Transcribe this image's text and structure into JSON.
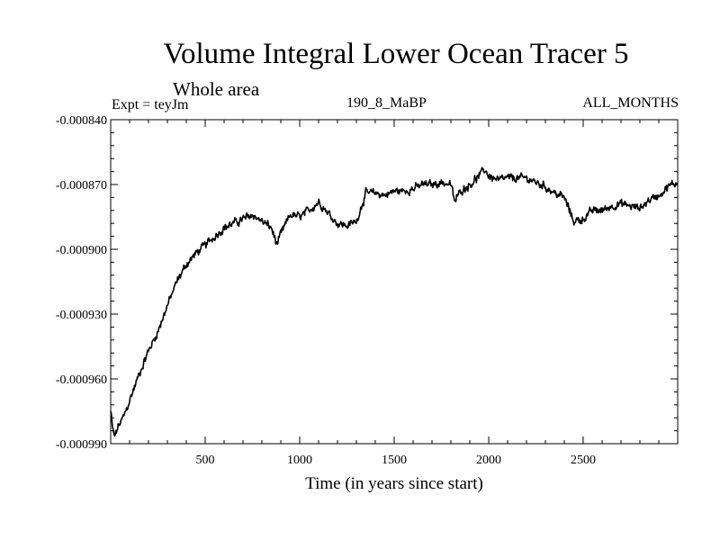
{
  "header": {
    "title": "Volume Integral Lower Ocean Tracer 5",
    "subtitle": "Whole area",
    "expt": "Expt = teyJm",
    "center_label": "190_8_MaBP",
    "right_label": "ALL_MONTHS"
  },
  "chart_data": {
    "type": "line",
    "title": "Volume Integral Lower Ocean Tracer 5",
    "xlabel": "Time (in years since start)",
    "ylabel": "",
    "xlim": [
      0,
      3000
    ],
    "ylim": [
      -0.00099,
      -0.00084
    ],
    "x_ticks": [
      500,
      1000,
      1500,
      2000,
      2500
    ],
    "x_tick_labels": [
      "500",
      "1000",
      "1500",
      "2000",
      "2500"
    ],
    "y_ticks": [
      -0.00084,
      -0.00087,
      -0.0009,
      -0.00093,
      -0.00096,
      -0.00099
    ],
    "y_tick_labels": [
      "-0.000840",
      "-0.000870",
      "-0.000900",
      "-0.000930",
      "-0.000960",
      "-0.000990"
    ],
    "series": [
      {
        "name": "Lower Ocean Tracer 5",
        "x": [
          0,
          10,
          20,
          40,
          60,
          80,
          100,
          150,
          200,
          250,
          300,
          350,
          400,
          450,
          500,
          550,
          600,
          650,
          700,
          750,
          800,
          850,
          880,
          900,
          950,
          1000,
          1050,
          1100,
          1150,
          1200,
          1250,
          1300,
          1350,
          1400,
          1450,
          1500,
          1550,
          1600,
          1650,
          1700,
          1750,
          1800,
          1820,
          1850,
          1900,
          1950,
          1980,
          2000,
          2050,
          2100,
          2150,
          2200,
          2250,
          2300,
          2350,
          2400,
          2450,
          2500,
          2550,
          2600,
          2650,
          2700,
          2750,
          2800,
          2850,
          2900,
          2950,
          3000
        ],
        "y": [
          -0.000975,
          -0.000983,
          -0.000987,
          -0.000982,
          -0.000979,
          -0.000975,
          -0.00097,
          -0.000958,
          -0.000947,
          -0.000938,
          -0.000926,
          -0.000915,
          -0.000907,
          -0.000902,
          -0.000898,
          -0.000894,
          -0.00089,
          -0.000888,
          -0.000886,
          -0.000884,
          -0.000887,
          -0.00089,
          -0.000898,
          -0.000893,
          -0.000884,
          -0.000885,
          -0.000882,
          -0.000878,
          -0.000883,
          -0.000888,
          -0.000889,
          -0.000887,
          -0.000874,
          -0.000874,
          -0.000875,
          -0.000873,
          -0.000873,
          -0.000872,
          -0.00087,
          -0.00087,
          -0.000869,
          -0.00087,
          -0.000878,
          -0.000873,
          -0.00087,
          -0.000866,
          -0.000863,
          -0.000866,
          -0.000868,
          -0.000867,
          -0.000867,
          -0.000867,
          -0.000869,
          -0.000871,
          -0.000874,
          -0.000876,
          -0.000887,
          -0.000886,
          -0.000882,
          -0.000882,
          -0.00088,
          -0.000879,
          -0.00088,
          -0.000881,
          -0.000877,
          -0.000875,
          -0.000871,
          -0.000869
        ]
      }
    ]
  }
}
